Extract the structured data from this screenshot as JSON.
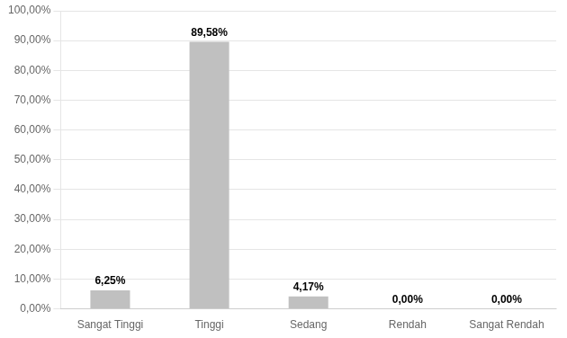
{
  "chart_data": {
    "type": "bar",
    "categories": [
      "Sangat Tinggi",
      "Tinggi",
      "Sedang",
      "Rendah",
      "Sangat Rendah"
    ],
    "values": [
      6.25,
      89.58,
      4.17,
      0.0,
      0.0
    ],
    "value_labels": [
      "6,25%",
      "89,58%",
      "4,17%",
      "0,00%",
      "0,00%"
    ],
    "data_labels": true,
    "color": "#c0c0c0",
    "ylim": [
      0,
      100
    ],
    "yticks": [
      {
        "value": 0,
        "label": "0,00%"
      },
      {
        "value": 10,
        "label": "10,00%"
      },
      {
        "value": 20,
        "label": "20,00%"
      },
      {
        "value": 30,
        "label": "30,00%"
      },
      {
        "value": 40,
        "label": "40,00%"
      },
      {
        "value": 50,
        "label": "50,00%"
      },
      {
        "value": 60,
        "label": "60,00%"
      },
      {
        "value": 70,
        "label": "70,00%"
      },
      {
        "value": 80,
        "label": "80,00%"
      },
      {
        "value": 90,
        "label": "90,00%"
      },
      {
        "value": 100,
        "label": "100,00%"
      }
    ],
    "grid": true
  }
}
